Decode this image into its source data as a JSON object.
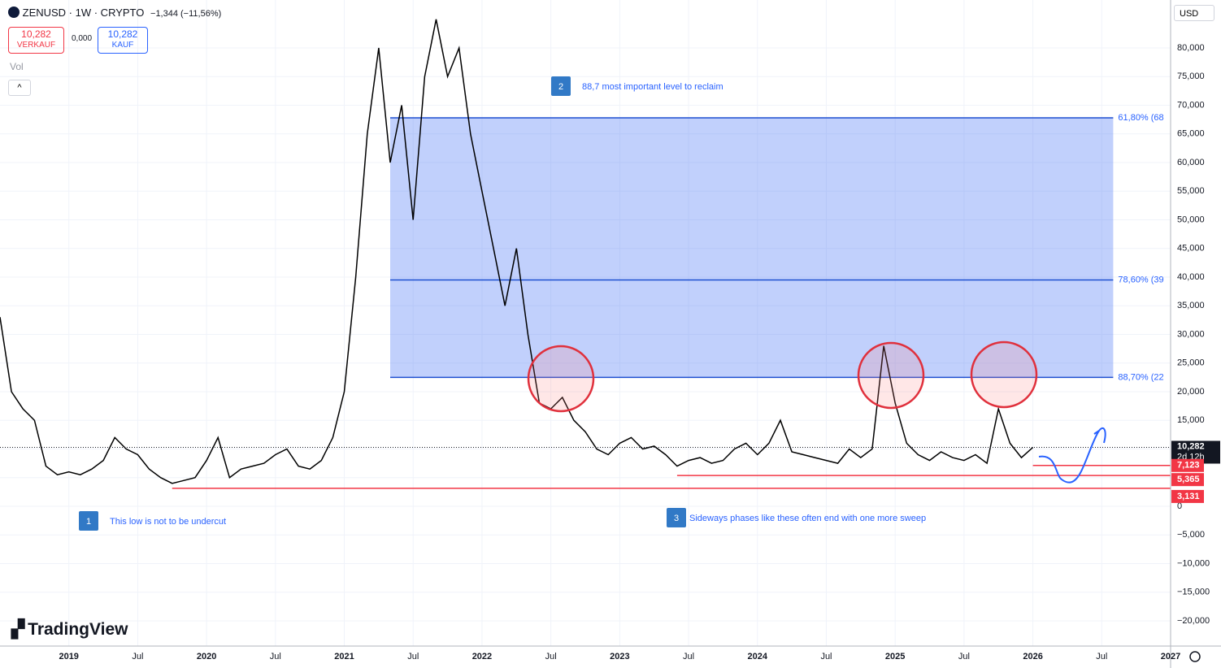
{
  "toolbar": {
    "symbol": "ZENUSD · 1W · CRYPTO",
    "change": "−1,344 (−11,56%)",
    "sell_price": "10,282",
    "sell_label": "VERKAUF",
    "spread": "0,000",
    "buy_price": "10,282",
    "buy_label": "KAUF",
    "volume_label": "Vol",
    "currency": "USD",
    "logo": "TradingView"
  },
  "chart_data": {
    "type": "line",
    "color": "#000000",
    "x": [
      "2018-07",
      "2018-08",
      "2018-09",
      "2018-10",
      "2018-11",
      "2018-12",
      "2019-01",
      "2019-02",
      "2019-03",
      "2019-04",
      "2019-05",
      "2019-06",
      "2019-07",
      "2019-08",
      "2019-09",
      "2019-10",
      "2019-11",
      "2019-12",
      "2020-01",
      "2020-02",
      "2020-03",
      "2020-04",
      "2020-05",
      "2020-06",
      "2020-07",
      "2020-08",
      "2020-09",
      "2020-10",
      "2020-11",
      "2020-12",
      "2021-01",
      "2021-02",
      "2021-03",
      "2021-04",
      "2021-05",
      "2021-06",
      "2021-07",
      "2021-08",
      "2021-09",
      "2021-10",
      "2021-11",
      "2021-12",
      "2022-01",
      "2022-02",
      "2022-03",
      "2022-04",
      "2022-05",
      "2022-06",
      "2022-07",
      "2022-08",
      "2022-09",
      "2022-10",
      "2022-11",
      "2022-12",
      "2023-01",
      "2023-02",
      "2023-03",
      "2023-04",
      "2023-05",
      "2023-06",
      "2023-07",
      "2023-08",
      "2023-09",
      "2023-10",
      "2023-11",
      "2023-12",
      "2024-01",
      "2024-02",
      "2024-03",
      "2024-04",
      "2024-05",
      "2024-06",
      "2024-07",
      "2024-08",
      "2024-09",
      "2024-10",
      "2024-11",
      "2024-12",
      "2025-01",
      "2025-02",
      "2025-03",
      "2025-04",
      "2025-05",
      "2025-06",
      "2025-07",
      "2025-08",
      "2025-09",
      "2025-10",
      "2025-11",
      "2025-12",
      "2026-01"
    ],
    "values": [
      33000,
      20000,
      17000,
      15000,
      7000,
      5500,
      6000,
      5500,
      6500,
      8000,
      12000,
      10000,
      9000,
      6500,
      5000,
      4000,
      4500,
      5000,
      8000,
      12000,
      5000,
      6500,
      7000,
      7500,
      9000,
      10000,
      7000,
      6500,
      8000,
      12000,
      20000,
      40000,
      65000,
      80000,
      60000,
      70000,
      50000,
      75000,
      85000,
      75000,
      80000,
      65000,
      55000,
      45000,
      35000,
      45000,
      30000,
      18000,
      17000,
      19000,
      15000,
      13000,
      10000,
      9000,
      11000,
      12000,
      10000,
      10500,
      9000,
      7000,
      8000,
      8500,
      7500,
      8000,
      10000,
      11000,
      9000,
      11000,
      15000,
      9500,
      9000,
      8500,
      8000,
      7500,
      10000,
      8500,
      10000,
      28000,
      18000,
      11000,
      9000,
      8000,
      9500,
      8500,
      8000,
      9000,
      7500,
      17000,
      11000,
      8500,
      10282
    ],
    "xlim": [
      "2018-07",
      "2027-01"
    ],
    "xticks": [
      {
        "value": "2019-01",
        "label": "2019"
      },
      {
        "value": "2019-07",
        "label": "Jul"
      },
      {
        "value": "2020-01",
        "label": "2020"
      },
      {
        "value": "2020-07",
        "label": "Jul"
      },
      {
        "value": "2021-01",
        "label": "2021"
      },
      {
        "value": "2021-07",
        "label": "Jul"
      },
      {
        "value": "2022-01",
        "label": "2022"
      },
      {
        "value": "2022-07",
        "label": "Jul"
      },
      {
        "value": "2023-01",
        "label": "2023"
      },
      {
        "value": "2023-07",
        "label": "Jul"
      },
      {
        "value": "2024-01",
        "label": "2024"
      },
      {
        "value": "2024-07",
        "label": "Jul"
      },
      {
        "value": "2025-01",
        "label": "2025"
      },
      {
        "value": "2025-07",
        "label": "Jul"
      },
      {
        "value": "2026-01",
        "label": "2026"
      },
      {
        "value": "2026-07",
        "label": "Jul"
      },
      {
        "value": "2027-01",
        "label": "2027"
      }
    ],
    "ylim": [
      -24400,
      88370
    ],
    "yticks": [
      {
        "value": 80000,
        "label": "80,000"
      },
      {
        "value": 75000,
        "label": "75,000"
      },
      {
        "value": 70000,
        "label": "70,000"
      },
      {
        "value": 65000,
        "label": "65,000"
      },
      {
        "value": 60000,
        "label": "60,000"
      },
      {
        "value": 55000,
        "label": "55,000"
      },
      {
        "value": 50000,
        "label": "50,000"
      },
      {
        "value": 45000,
        "label": "45,000"
      },
      {
        "value": 40000,
        "label": "40,000"
      },
      {
        "value": 35000,
        "label": "35,000"
      },
      {
        "value": 30000,
        "label": "30,000"
      },
      {
        "value": 25000,
        "label": "25,000"
      },
      {
        "value": 20000,
        "label": "20,000"
      },
      {
        "value": 15000,
        "label": "15,000"
      },
      {
        "value": 10000,
        "label": "10,000"
      },
      {
        "value": 5000,
        "label": "5,000"
      },
      0,
      {
        "value": -5000,
        "label": "−5,000"
      },
      {
        "value": -10000,
        "label": "−10,000"
      },
      {
        "value": -15000,
        "label": "−15,000"
      },
      {
        "value": -20000,
        "label": "−20,000"
      }
    ],
    "grid": true,
    "fib_zone": {
      "start": "2021-05",
      "end": "2026-08",
      "color": "#3d6cf5",
      "levels": [
        {
          "value": 67800,
          "label": "61,80% (68"
        },
        {
          "value": 39500,
          "label": "78,60% (39"
        },
        {
          "value": 22500,
          "label": "88,70% (22"
        }
      ]
    },
    "price_lines": [
      {
        "value": 7123,
        "label": "7,123",
        "start": "2026-01"
      },
      {
        "value": 5365,
        "label": "5,365",
        "start": "2023-06"
      },
      {
        "value": 3131,
        "label": "3,131",
        "start": "2019-10"
      }
    ],
    "last_price": {
      "value": 10282,
      "label": "10,282",
      "countdown": "2d 12h"
    },
    "annotations": [
      {
        "number": "1",
        "text": "This low is not to be undercut"
      },
      {
        "number": "2",
        "text": "88,7 most important level to reclaim"
      },
      {
        "number": "3",
        "text": "Sideways phases like these often end with one more sweep"
      }
    ]
  }
}
